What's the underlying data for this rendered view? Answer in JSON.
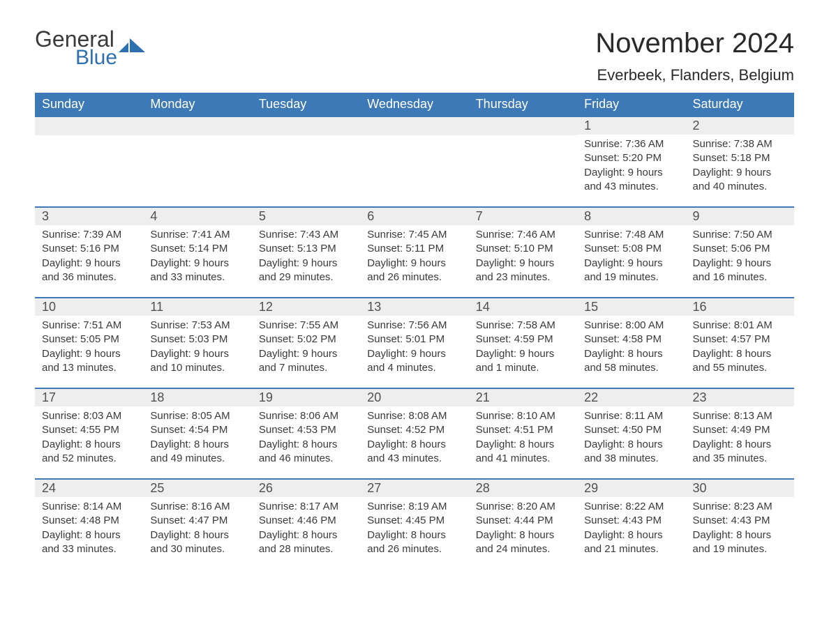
{
  "brand": {
    "word1": "General",
    "word2": "Blue",
    "icon_color": "#2e6fb0",
    "text_color_dark": "#3a3a3a",
    "text_color_blue": "#2e6fb0"
  },
  "header": {
    "title": "November 2024",
    "location": "Everbeek, Flanders, Belgium"
  },
  "colors": {
    "header_bg": "#3d79b6",
    "header_text": "#ffffff",
    "daynum_bg": "#eeeeee",
    "daynum_text": "#505050",
    "body_text": "#3a3a3a",
    "week_border": "#3d79b6",
    "page_bg": "#ffffff"
  },
  "typography": {
    "title_fontsize": 40,
    "location_fontsize": 22,
    "weekday_fontsize": 18,
    "daynum_fontsize": 18,
    "body_fontsize": 15
  },
  "layout": {
    "columns": 7,
    "rows": 5,
    "cell_min_height": 128
  },
  "weekdays": [
    "Sunday",
    "Monday",
    "Tuesday",
    "Wednesday",
    "Thursday",
    "Friday",
    "Saturday"
  ],
  "labels": {
    "sunrise": "Sunrise:",
    "sunset": "Sunset:",
    "daylight": "Daylight:"
  },
  "weeks": [
    [
      null,
      null,
      null,
      null,
      null,
      {
        "day": "1",
        "sunrise": "7:36 AM",
        "sunset": "5:20 PM",
        "daylight": "9 hours and 43 minutes."
      },
      {
        "day": "2",
        "sunrise": "7:38 AM",
        "sunset": "5:18 PM",
        "daylight": "9 hours and 40 minutes."
      }
    ],
    [
      {
        "day": "3",
        "sunrise": "7:39 AM",
        "sunset": "5:16 PM",
        "daylight": "9 hours and 36 minutes."
      },
      {
        "day": "4",
        "sunrise": "7:41 AM",
        "sunset": "5:14 PM",
        "daylight": "9 hours and 33 minutes."
      },
      {
        "day": "5",
        "sunrise": "7:43 AM",
        "sunset": "5:13 PM",
        "daylight": "9 hours and 29 minutes."
      },
      {
        "day": "6",
        "sunrise": "7:45 AM",
        "sunset": "5:11 PM",
        "daylight": "9 hours and 26 minutes."
      },
      {
        "day": "7",
        "sunrise": "7:46 AM",
        "sunset": "5:10 PM",
        "daylight": "9 hours and 23 minutes."
      },
      {
        "day": "8",
        "sunrise": "7:48 AM",
        "sunset": "5:08 PM",
        "daylight": "9 hours and 19 minutes."
      },
      {
        "day": "9",
        "sunrise": "7:50 AM",
        "sunset": "5:06 PM",
        "daylight": "9 hours and 16 minutes."
      }
    ],
    [
      {
        "day": "10",
        "sunrise": "7:51 AM",
        "sunset": "5:05 PM",
        "daylight": "9 hours and 13 minutes."
      },
      {
        "day": "11",
        "sunrise": "7:53 AM",
        "sunset": "5:03 PM",
        "daylight": "9 hours and 10 minutes."
      },
      {
        "day": "12",
        "sunrise": "7:55 AM",
        "sunset": "5:02 PM",
        "daylight": "9 hours and 7 minutes."
      },
      {
        "day": "13",
        "sunrise": "7:56 AM",
        "sunset": "5:01 PM",
        "daylight": "9 hours and 4 minutes."
      },
      {
        "day": "14",
        "sunrise": "7:58 AM",
        "sunset": "4:59 PM",
        "daylight": "9 hours and 1 minute."
      },
      {
        "day": "15",
        "sunrise": "8:00 AM",
        "sunset": "4:58 PM",
        "daylight": "8 hours and 58 minutes."
      },
      {
        "day": "16",
        "sunrise": "8:01 AM",
        "sunset": "4:57 PM",
        "daylight": "8 hours and 55 minutes."
      }
    ],
    [
      {
        "day": "17",
        "sunrise": "8:03 AM",
        "sunset": "4:55 PM",
        "daylight": "8 hours and 52 minutes."
      },
      {
        "day": "18",
        "sunrise": "8:05 AM",
        "sunset": "4:54 PM",
        "daylight": "8 hours and 49 minutes."
      },
      {
        "day": "19",
        "sunrise": "8:06 AM",
        "sunset": "4:53 PM",
        "daylight": "8 hours and 46 minutes."
      },
      {
        "day": "20",
        "sunrise": "8:08 AM",
        "sunset": "4:52 PM",
        "daylight": "8 hours and 43 minutes."
      },
      {
        "day": "21",
        "sunrise": "8:10 AM",
        "sunset": "4:51 PM",
        "daylight": "8 hours and 41 minutes."
      },
      {
        "day": "22",
        "sunrise": "8:11 AM",
        "sunset": "4:50 PM",
        "daylight": "8 hours and 38 minutes."
      },
      {
        "day": "23",
        "sunrise": "8:13 AM",
        "sunset": "4:49 PM",
        "daylight": "8 hours and 35 minutes."
      }
    ],
    [
      {
        "day": "24",
        "sunrise": "8:14 AM",
        "sunset": "4:48 PM",
        "daylight": "8 hours and 33 minutes."
      },
      {
        "day": "25",
        "sunrise": "8:16 AM",
        "sunset": "4:47 PM",
        "daylight": "8 hours and 30 minutes."
      },
      {
        "day": "26",
        "sunrise": "8:17 AM",
        "sunset": "4:46 PM",
        "daylight": "8 hours and 28 minutes."
      },
      {
        "day": "27",
        "sunrise": "8:19 AM",
        "sunset": "4:45 PM",
        "daylight": "8 hours and 26 minutes."
      },
      {
        "day": "28",
        "sunrise": "8:20 AM",
        "sunset": "4:44 PM",
        "daylight": "8 hours and 24 minutes."
      },
      {
        "day": "29",
        "sunrise": "8:22 AM",
        "sunset": "4:43 PM",
        "daylight": "8 hours and 21 minutes."
      },
      {
        "day": "30",
        "sunrise": "8:23 AM",
        "sunset": "4:43 PM",
        "daylight": "8 hours and 19 minutes."
      }
    ]
  ]
}
